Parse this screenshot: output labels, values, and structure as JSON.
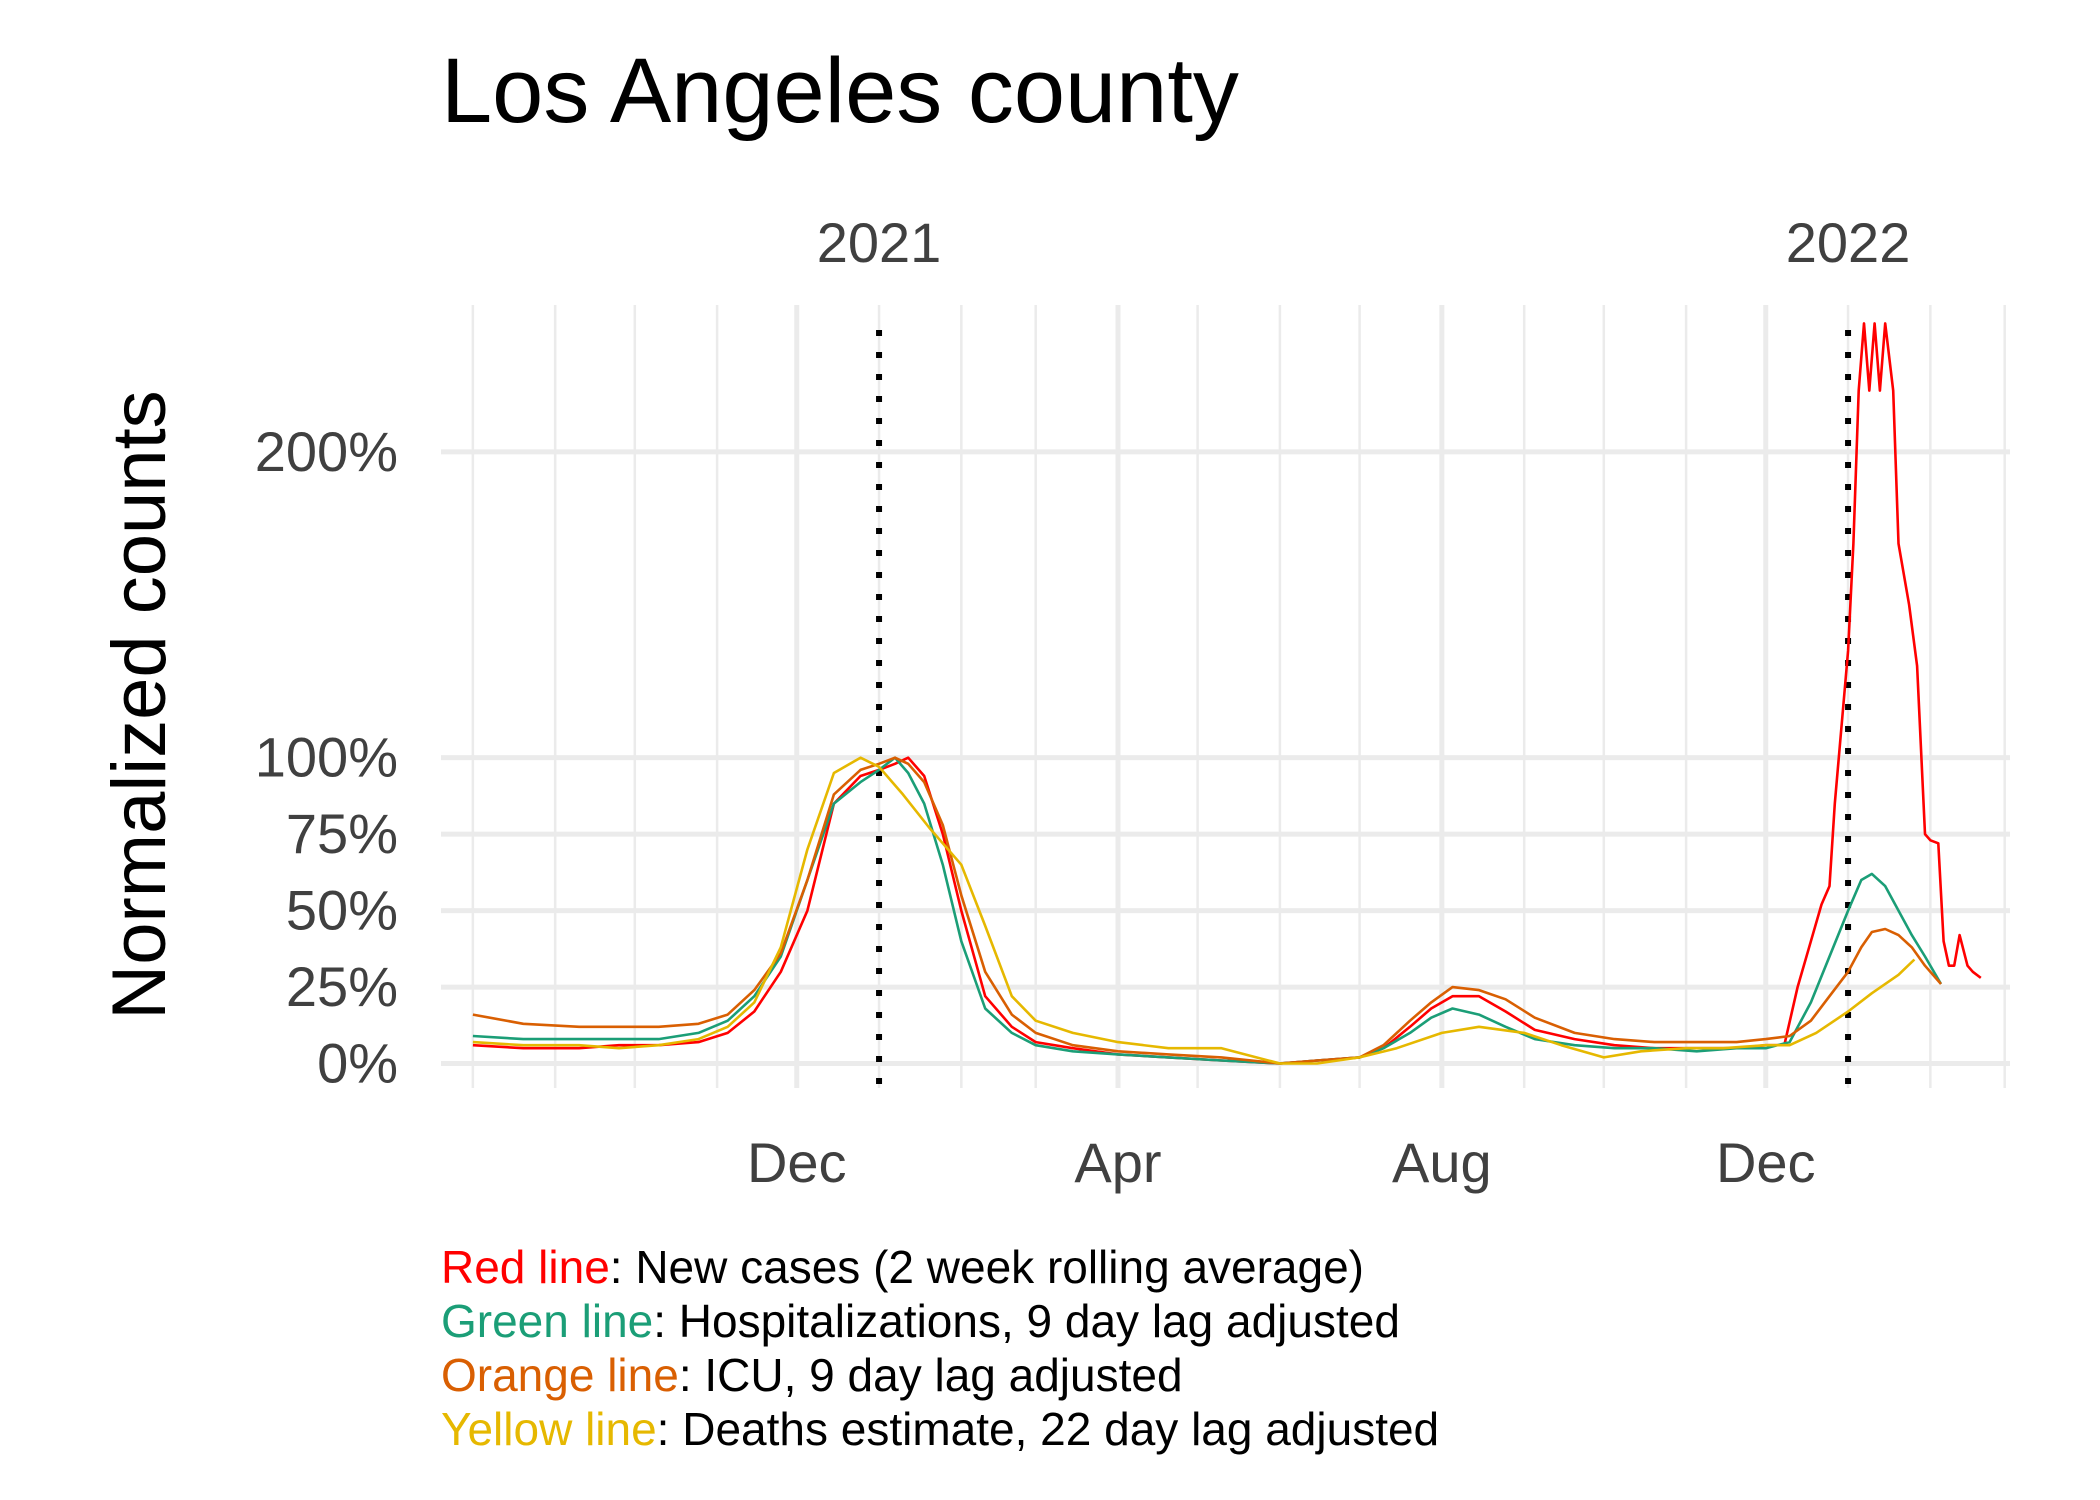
{
  "colors": {
    "cases": "#ff0000",
    "hospitalizations": "#1b9e77",
    "icu": "#d95f02",
    "deaths": "#e6b800",
    "grid": "#ebebeb",
    "marker": "#000000"
  },
  "legend": [
    {
      "colored": "Red line",
      "rest": ": New cases (2 week rolling average)",
      "color": "#ff0000"
    },
    {
      "colored": "Green line",
      "rest": ": Hospitalizations, 9 day lag adjusted",
      "color": "#1b9e77"
    },
    {
      "colored": "Orange line",
      "rest": ": ICU, 9 day lag adjusted",
      "color": "#d95f02"
    },
    {
      "colored": "Yellow line",
      "rest": ": Deaths estimate, 22 day lag adjusted",
      "color": "#e6b800"
    }
  ],
  "chart_data": {
    "type": "line",
    "title": "Los Angeles county",
    "xlabel": "",
    "ylabel": "Normalized counts",
    "xlim": [
      "2020-07-20",
      "2022-03-03"
    ],
    "ylim": [
      -0.08,
      2.48
    ],
    "x_ticks": [
      {
        "date": "2020-12-01",
        "label": "Dec"
      },
      {
        "date": "2021-04-01",
        "label": "Apr"
      },
      {
        "date": "2021-08-01",
        "label": "Aug"
      },
      {
        "date": "2021-12-01",
        "label": "Dec"
      }
    ],
    "x_minor_grid": [
      "2020-08-01",
      "2020-09-01",
      "2020-10-01",
      "2020-11-01",
      "2021-01-01",
      "2021-02-01",
      "2021-03-01",
      "2021-05-01",
      "2021-06-01",
      "2021-07-01",
      "2021-09-01",
      "2021-10-01",
      "2021-11-01",
      "2022-01-01",
      "2022-02-01",
      "2022-03-01"
    ],
    "y_ticks": [
      {
        "value": 0,
        "label": "0%"
      },
      {
        "value": 0.25,
        "label": "25%"
      },
      {
        "value": 0.5,
        "label": "50%"
      },
      {
        "value": 0.75,
        "label": "75%"
      },
      {
        "value": 1,
        "label": "100%"
      },
      {
        "value": 2,
        "label": "200%"
      }
    ],
    "year_markers": [
      {
        "date": "2021-01-01",
        "label": "2021"
      },
      {
        "date": "2022-01-01",
        "label": "2022"
      }
    ],
    "grid": true,
    "series": [
      {
        "key": "cases",
        "x": [
          "2020-08-01",
          "2020-08-20",
          "2020-09-10",
          "2020-09-25",
          "2020-10-10",
          "2020-10-25",
          "2020-11-05",
          "2020-11-15",
          "2020-11-25",
          "2020-12-05",
          "2020-12-15",
          "2020-12-25",
          "2021-01-01",
          "2021-01-07",
          "2021-01-12",
          "2021-01-18",
          "2021-01-25",
          "2021-02-01",
          "2021-02-10",
          "2021-02-20",
          "2021-03-01",
          "2021-03-15",
          "2021-04-01",
          "2021-04-20",
          "2021-05-10",
          "2021-06-01",
          "2021-06-15",
          "2021-07-01",
          "2021-07-10",
          "2021-07-20",
          "2021-07-28",
          "2021-08-05",
          "2021-08-15",
          "2021-08-25",
          "2021-09-05",
          "2021-09-20",
          "2021-10-05",
          "2021-10-20",
          "2021-11-05",
          "2021-11-20",
          "2021-12-01",
          "2021-12-08",
          "2021-12-13",
          "2021-12-18",
          "2021-12-22",
          "2021-12-25",
          "2021-12-27",
          "2022-01-01",
          "2022-01-03",
          "2022-01-05",
          "2022-01-07",
          "2022-01-09",
          "2022-01-11",
          "2022-01-13",
          "2022-01-15",
          "2022-01-18",
          "2022-01-20",
          "2022-01-22",
          "2022-01-24",
          "2022-01-27",
          "2022-01-30",
          "2022-02-01",
          "2022-02-04",
          "2022-02-06",
          "2022-02-08",
          "2022-02-10",
          "2022-02-12",
          "2022-02-15",
          "2022-02-17",
          "2022-02-20"
        ],
        "y": [
          0.06,
          0.05,
          0.05,
          0.06,
          0.06,
          0.07,
          0.1,
          0.17,
          0.3,
          0.5,
          0.85,
          0.94,
          0.96,
          0.98,
          1.0,
          0.94,
          0.75,
          0.5,
          0.22,
          0.12,
          0.07,
          0.05,
          0.03,
          0.02,
          0.01,
          0.0,
          0.01,
          0.02,
          0.05,
          0.12,
          0.18,
          0.22,
          0.22,
          0.17,
          0.11,
          0.08,
          0.06,
          0.05,
          0.05,
          0.05,
          0.06,
          0.06,
          0.25,
          0.4,
          0.52,
          0.58,
          0.85,
          1.35,
          1.7,
          2.2,
          2.42,
          2.2,
          2.42,
          2.2,
          2.42,
          2.2,
          1.7,
          1.6,
          1.5,
          1.3,
          0.75,
          0.73,
          0.72,
          0.4,
          0.32,
          0.32,
          0.42,
          0.32,
          0.3,
          0.28
        ]
      },
      {
        "key": "hospitalizations",
        "x": [
          "2020-08-01",
          "2020-08-20",
          "2020-09-10",
          "2020-09-25",
          "2020-10-10",
          "2020-10-25",
          "2020-11-05",
          "2020-11-15",
          "2020-11-25",
          "2020-12-05",
          "2020-12-15",
          "2020-12-25",
          "2021-01-01",
          "2021-01-07",
          "2021-01-12",
          "2021-01-18",
          "2021-01-25",
          "2021-02-01",
          "2021-02-10",
          "2021-02-20",
          "2021-03-01",
          "2021-03-15",
          "2021-04-01",
          "2021-04-20",
          "2021-05-10",
          "2021-06-01",
          "2021-06-15",
          "2021-07-01",
          "2021-07-10",
          "2021-07-20",
          "2021-07-28",
          "2021-08-05",
          "2021-08-15",
          "2021-08-25",
          "2021-09-05",
          "2021-09-20",
          "2021-10-05",
          "2021-10-20",
          "2021-11-05",
          "2021-11-20",
          "2021-12-01",
          "2021-12-10",
          "2021-12-18",
          "2021-12-25",
          "2022-01-01",
          "2022-01-06",
          "2022-01-10",
          "2022-01-15",
          "2022-01-20",
          "2022-01-25",
          "2022-01-30",
          "2022-02-05"
        ],
        "y": [
          0.09,
          0.08,
          0.08,
          0.08,
          0.08,
          0.1,
          0.14,
          0.22,
          0.35,
          0.6,
          0.85,
          0.92,
          0.96,
          1.0,
          0.95,
          0.85,
          0.65,
          0.4,
          0.18,
          0.1,
          0.06,
          0.04,
          0.03,
          0.02,
          0.01,
          0.0,
          0.01,
          0.02,
          0.05,
          0.1,
          0.15,
          0.18,
          0.16,
          0.12,
          0.08,
          0.06,
          0.05,
          0.05,
          0.04,
          0.05,
          0.05,
          0.07,
          0.2,
          0.35,
          0.5,
          0.6,
          0.62,
          0.58,
          0.5,
          0.42,
          0.35,
          0.26
        ]
      },
      {
        "key": "icu",
        "x": [
          "2020-08-01",
          "2020-08-20",
          "2020-09-10",
          "2020-09-25",
          "2020-10-10",
          "2020-10-25",
          "2020-11-05",
          "2020-11-15",
          "2020-11-25",
          "2020-12-05",
          "2020-12-15",
          "2020-12-25",
          "2021-01-01",
          "2021-01-07",
          "2021-01-12",
          "2021-01-18",
          "2021-01-25",
          "2021-02-01",
          "2021-02-10",
          "2021-02-20",
          "2021-03-01",
          "2021-03-15",
          "2021-04-01",
          "2021-04-20",
          "2021-05-10",
          "2021-06-01",
          "2021-06-15",
          "2021-07-01",
          "2021-07-10",
          "2021-07-20",
          "2021-07-28",
          "2021-08-05",
          "2021-08-15",
          "2021-08-25",
          "2021-09-05",
          "2021-09-20",
          "2021-10-05",
          "2021-10-20",
          "2021-11-05",
          "2021-11-20",
          "2021-12-01",
          "2021-12-10",
          "2021-12-18",
          "2021-12-25",
          "2022-01-01",
          "2022-01-06",
          "2022-01-10",
          "2022-01-15",
          "2022-01-20",
          "2022-01-25",
          "2022-01-30",
          "2022-02-05"
        ],
        "y": [
          0.16,
          0.13,
          0.12,
          0.12,
          0.12,
          0.13,
          0.16,
          0.24,
          0.36,
          0.6,
          0.88,
          0.96,
          0.98,
          1.0,
          0.98,
          0.92,
          0.78,
          0.55,
          0.3,
          0.16,
          0.1,
          0.06,
          0.04,
          0.03,
          0.02,
          0.0,
          0.01,
          0.02,
          0.06,
          0.14,
          0.2,
          0.25,
          0.24,
          0.21,
          0.15,
          0.1,
          0.08,
          0.07,
          0.07,
          0.07,
          0.08,
          0.09,
          0.14,
          0.22,
          0.3,
          0.38,
          0.43,
          0.44,
          0.42,
          0.38,
          0.32,
          0.26
        ]
      },
      {
        "key": "deaths",
        "x": [
          "2020-08-01",
          "2020-08-20",
          "2020-09-10",
          "2020-09-25",
          "2020-10-10",
          "2020-10-25",
          "2020-11-05",
          "2020-11-15",
          "2020-11-25",
          "2020-12-05",
          "2020-12-15",
          "2020-12-25",
          "2021-01-01",
          "2021-01-10",
          "2021-01-20",
          "2021-02-01",
          "2021-02-10",
          "2021-02-20",
          "2021-03-01",
          "2021-03-15",
          "2021-04-01",
          "2021-04-20",
          "2021-05-10",
          "2021-06-01",
          "2021-06-15",
          "2021-07-01",
          "2021-07-15",
          "2021-08-01",
          "2021-08-15",
          "2021-09-01",
          "2021-09-15",
          "2021-10-01",
          "2021-10-15",
          "2021-11-01",
          "2021-11-15",
          "2021-12-01",
          "2021-12-10",
          "2021-12-20",
          "2022-01-01",
          "2022-01-10",
          "2022-01-20",
          "2022-01-26"
        ],
        "y": [
          0.07,
          0.06,
          0.06,
          0.05,
          0.06,
          0.08,
          0.12,
          0.2,
          0.38,
          0.7,
          0.95,
          1.0,
          0.97,
          0.88,
          0.77,
          0.65,
          0.45,
          0.22,
          0.14,
          0.1,
          0.07,
          0.05,
          0.05,
          0.0,
          0.0,
          0.02,
          0.05,
          0.1,
          0.12,
          0.1,
          0.06,
          0.02,
          0.04,
          0.05,
          0.05,
          0.06,
          0.06,
          0.1,
          0.17,
          0.23,
          0.29,
          0.34
        ]
      }
    ]
  }
}
